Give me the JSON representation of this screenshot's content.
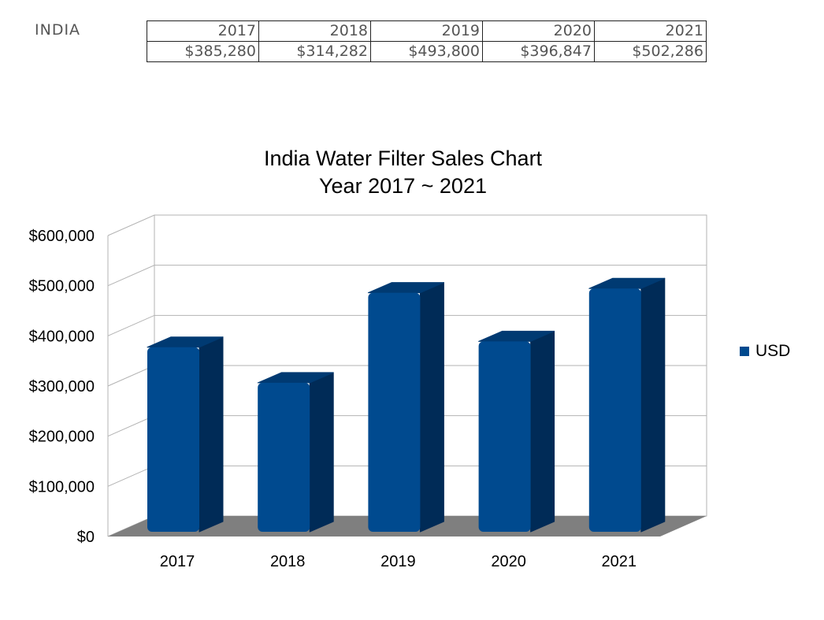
{
  "sheet": {
    "row_label": "INDIA",
    "years": [
      "2017",
      "2018",
      "2019",
      "2020",
      "2021"
    ],
    "amounts": [
      "$385,280",
      "$314,282",
      "$493,800",
      "$396,847",
      "$502,286"
    ]
  },
  "chart_data": {
    "type": "bar",
    "style": "3d",
    "title": "India Water Filter Sales Chart",
    "subtitle": "Year 2017 ~ 2021",
    "categories": [
      "2017",
      "2018",
      "2019",
      "2020",
      "2021"
    ],
    "series": [
      {
        "name": "USD",
        "values": [
          385280,
          314282,
          493800,
          396847,
          502286
        ]
      }
    ],
    "ylim": [
      0,
      600000
    ],
    "yticks": [
      0,
      100000,
      200000,
      300000,
      400000,
      500000,
      600000
    ],
    "ytick_labels": [
      "$0",
      "$100,000",
      "$200,000",
      "$300,000",
      "$400,000",
      "$500,000",
      "$600,000"
    ],
    "grid": true,
    "legend": "right",
    "colors": {
      "bar_front": "#004a8f",
      "bar_side": "#002b57",
      "bar_top": "#003a72",
      "floor": "#7f7f7f",
      "grid": "#b3b3b3"
    }
  }
}
